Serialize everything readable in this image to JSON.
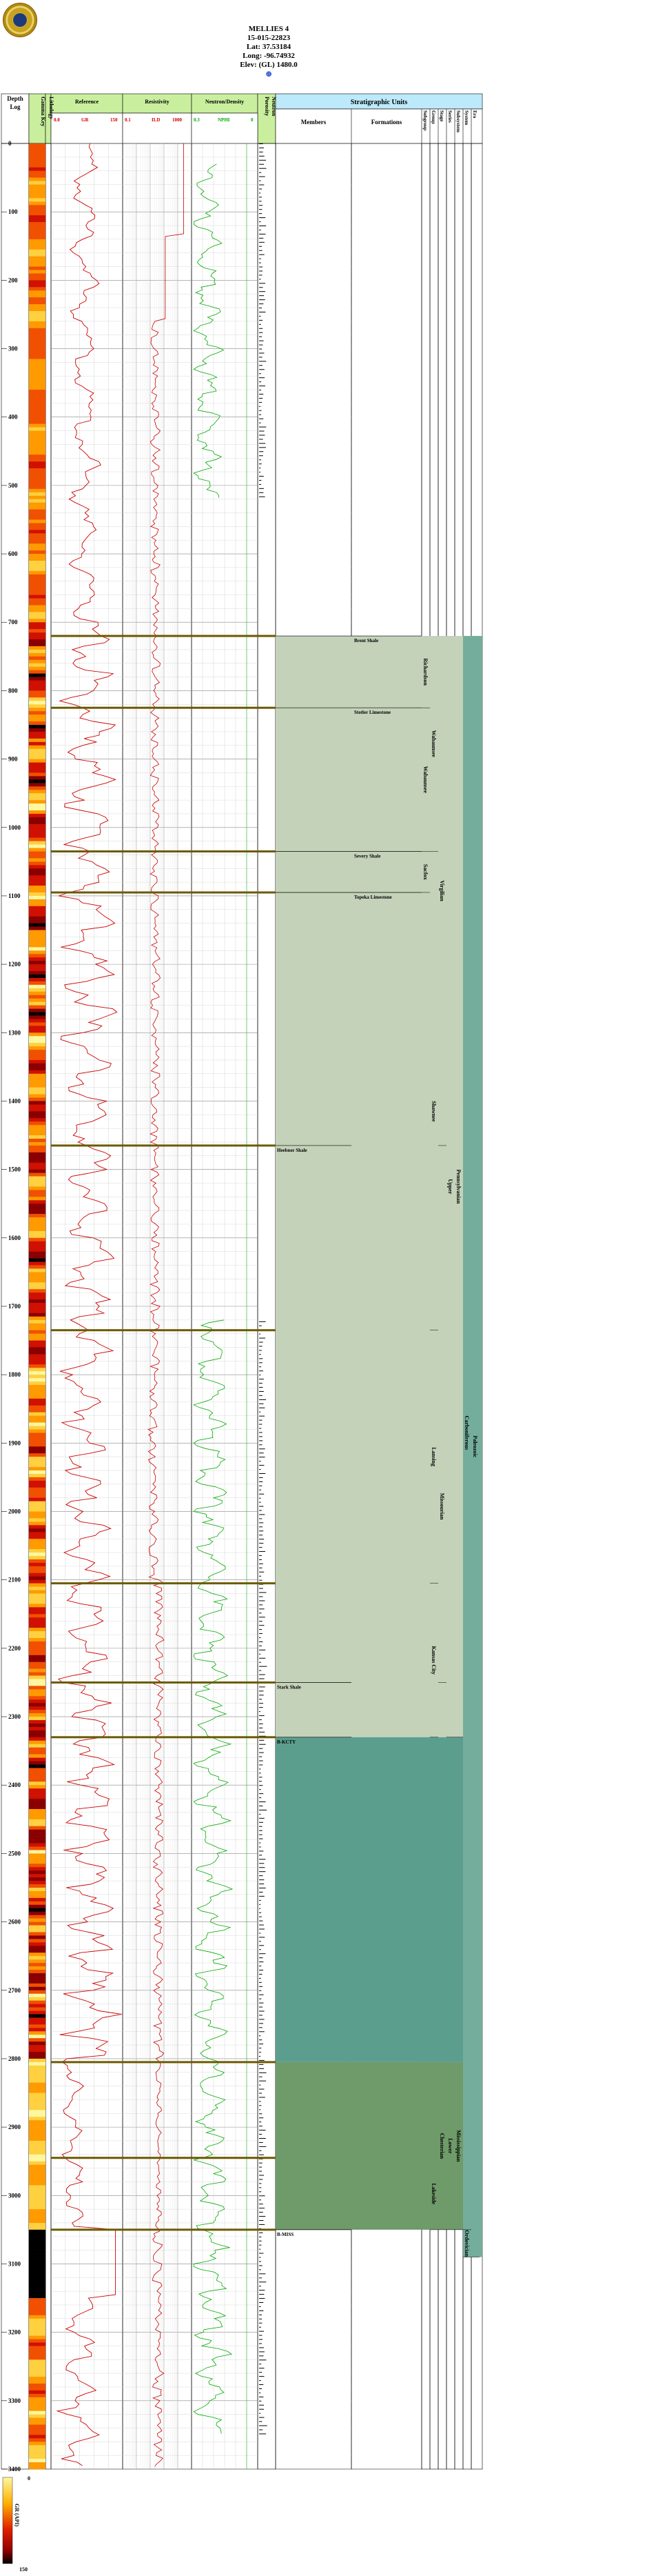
{
  "well": {
    "name": "MELLIES 4",
    "api": "15-015-22823",
    "lat": "Lat: 37.53184",
    "long": "Long: -96.74932",
    "elev": "Elev: (GL) 1480.0",
    "target_symbol": "⊕"
  },
  "columns": {
    "depth": "Depth",
    "log": "Log",
    "gamma_key": "Gamma Key",
    "lithology": "Lithology",
    "reference": "Reference",
    "resistivity": "Resistivity",
    "neutron_density": "Neutron/Density",
    "porosity": "Porosity",
    "neutron": "Neutron",
    "strat_units": "Stratigraphic Units",
    "members": "Members",
    "formations": "Formations",
    "subgroup": "Subgroup",
    "group": "Group",
    "stage": "Stage",
    "series": "Series",
    "subsystem": "Subsystem",
    "system": "System",
    "era": "Era"
  },
  "curves": {
    "gr": {
      "name": "GR",
      "min": "150",
      "max": "0",
      "unit": "0.0",
      "color": "#cc0000"
    },
    "ild": {
      "name": "ILD",
      "min": "1000",
      "max": "0.1",
      "color": "#cc0000"
    },
    "nphi": {
      "name": "NPHI",
      "min": "0.3",
      "max": "0",
      "color": "#00aa00"
    }
  },
  "colors": {
    "pennsylvanian_fill": "#c3d2b9",
    "misc_fill": "#5c9e8e",
    "mississippian_fill": "#6f9a6a",
    "era_fill": "#74ad9c",
    "header_fill": "#c9ef9e",
    "strat_header_fill": "#bdeafb",
    "top_line": "#6b5a00"
  },
  "depth_ticks": [
    "0",
    "100",
    "200",
    "300",
    "400",
    "500",
    "600",
    "700",
    "800",
    "900",
    "1000",
    "1100",
    "1200",
    "1300",
    "1400",
    "1500",
    "1600",
    "1700",
    "1800",
    "1900",
    "2000",
    "2100",
    "2200",
    "2300",
    "2400",
    "2500",
    "2600",
    "2700",
    "2800",
    "2900",
    "3000",
    "3100",
    "3200",
    "3300",
    "3400"
  ],
  "depth_range": [
    0,
    3400
  ],
  "tops": [
    {
      "label": "Brent Shale",
      "depth": 720,
      "col": "formation"
    },
    {
      "label": "Stotler Limestone",
      "depth": 825,
      "col": "formation"
    },
    {
      "label": "Severy Shale",
      "depth": 1035,
      "col": "formation"
    },
    {
      "label": "Topeka Limestone",
      "depth": 1095,
      "col": "formation"
    },
    {
      "label": "Heebner Shale",
      "depth": 1465,
      "col": "member"
    },
    {
      "label": "Stark Shale",
      "depth": 2250,
      "col": "member"
    },
    {
      "label": "B-KCTY",
      "depth": 2330,
      "col": "member"
    },
    {
      "label": "B-MISS",
      "depth": 3050,
      "col": "member"
    }
  ],
  "extra_top_lines": [
    1735,
    2105,
    2805,
    2945
  ],
  "units": {
    "subgroup": [
      {
        "label": "Richardson",
        "start": 720,
        "end": 825
      },
      {
        "label": "Wabaunsee",
        "start": 825,
        "end": 1035
      },
      {
        "label": "Sacfox",
        "start": 1035,
        "end": 1095
      }
    ],
    "group": [
      {
        "label": "Wabaunsee",
        "start": 720,
        "end": 1035
      },
      {
        "label": "Shawnee",
        "start": 1095,
        "end": 1735
      },
      {
        "label": "Lansing",
        "start": 1735,
        "end": 2105
      },
      {
        "label": "Kansas City",
        "start": 2105,
        "end": 2330
      },
      {
        "label": "Lakeside",
        "start": 2945,
        "end": 3050
      }
    ],
    "stage": [
      {
        "label": "Virgilian",
        "start": 720,
        "end": 1465
      },
      {
        "label": "Missourian",
        "start": 1735,
        "end": 2250
      },
      {
        "label": "Chesterian",
        "start": 2805,
        "end": 3050
      }
    ],
    "series": [
      {
        "label": "Upper",
        "start": 720,
        "end": 2330
      },
      {
        "label": "Lower",
        "start": 2805,
        "end": 3050
      }
    ],
    "subsystem": [
      {
        "label": "Pennsylvanian",
        "start": 720,
        "end": 2330
      },
      {
        "label": "Mississippian",
        "start": 2805,
        "end": 3050
      }
    ],
    "system": [
      {
        "label": "Carboniferous",
        "start": 720,
        "end": 3050
      },
      {
        "label": "Ordovician",
        "start": 3050,
        "end": 3090
      }
    ],
    "era": [
      {
        "label": "Paleozoic",
        "start": 720,
        "end": 3090
      }
    ]
  },
  "legend": {
    "title": "GR (API)",
    "min": "0",
    "max": "150"
  }
}
